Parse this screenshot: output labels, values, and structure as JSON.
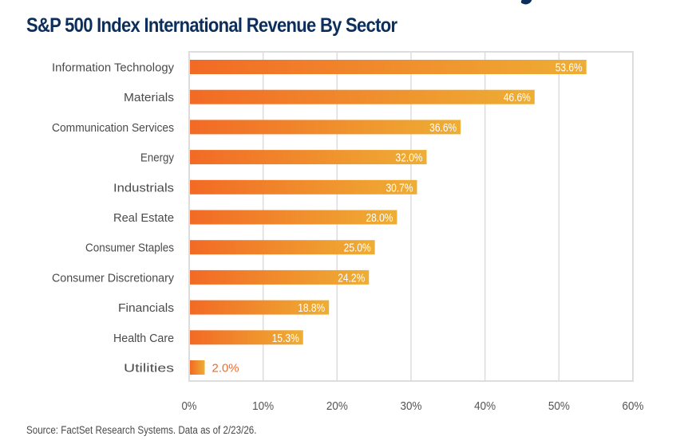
{
  "colors": {
    "title": "#0b2e5b",
    "bar_start": "#f26a25",
    "bar_end": "#eeae34",
    "value_inside": "#ffffff",
    "value_outside": "#f26a25",
    "grid": "#dddddd",
    "label": "#4a4a4a"
  },
  "source_note": "Source: FactSet Research Systems. Data as of 2/23/26.",
  "chart_data": {
    "type": "bar",
    "orientation": "horizontal",
    "title": "S&P 500 Index International Revenue By Sector",
    "xlabel": "",
    "ylabel": "",
    "categories": [
      "Information Technology",
      "Materials",
      "Communication Services",
      "Energy",
      "Industrials",
      "Real Estate",
      "Consumer Staples",
      "Consumer Discretionary",
      "Financials",
      "Health Care",
      "Utilities"
    ],
    "values": [
      53.6,
      46.6,
      36.6,
      32.0,
      30.7,
      28.0,
      25.0,
      24.2,
      18.8,
      15.3,
      2.0
    ],
    "value_labels": [
      "53.6%",
      "46.6%",
      "36.6%",
      "32.0%",
      "30.7%",
      "28.0%",
      "25.0%",
      "24.2%",
      "18.8%",
      "15.3%",
      "2.0%"
    ],
    "xlim": [
      0,
      60
    ],
    "xticks": [
      0,
      10,
      20,
      30,
      40,
      50,
      60
    ],
    "xtick_labels": [
      "0%",
      "10%",
      "20%",
      "30%",
      "40%",
      "50%",
      "60%"
    ],
    "grid": "vertical",
    "legend": "none"
  }
}
